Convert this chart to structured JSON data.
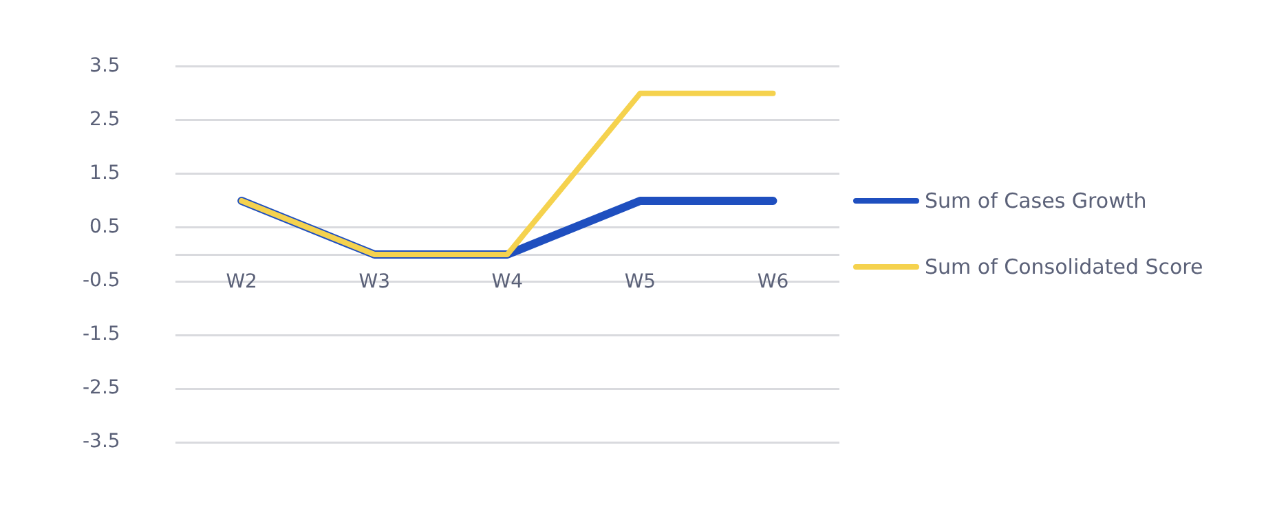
{
  "chart_data": {
    "type": "line",
    "categories": [
      "W2",
      "W3",
      "W4",
      "W5",
      "W6"
    ],
    "series": [
      {
        "name": "Sum of Cases Growth",
        "color": "#1f4fbf",
        "values": [
          1,
          0,
          0,
          1,
          1
        ]
      },
      {
        "name": "Sum of Consolidated Score",
        "color": "#f5d24e",
        "values": [
          1,
          0,
          0,
          3,
          3
        ]
      }
    ],
    "ylim": [
      -3.5,
      3.5
    ],
    "yticks": [
      -3.5,
      -2.5,
      -1.5,
      -0.5,
      {
        "value": 0,
        "label": null
      },
      0.5,
      1.5,
      2.5,
      3.5
    ],
    "grid": "y",
    "legend": "right",
    "marker": "none",
    "line_style": "solid"
  }
}
